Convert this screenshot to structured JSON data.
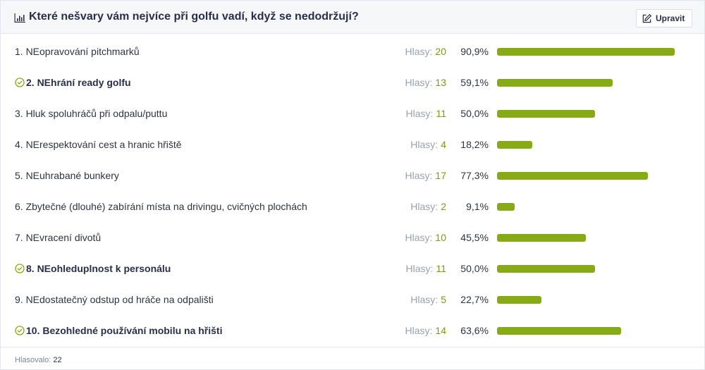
{
  "poll": {
    "title": "Které nešvary vám nejvíce při golfu vadí, když se nedodržují?",
    "edit_label": "Upravit",
    "votes_label": "Hlasy:",
    "total_label": "Hlasovalo:",
    "total_votes": "22",
    "accent_color": "#86ab14",
    "options": [
      {
        "label": "1. NEopravování pitchmarků",
        "votes": "20",
        "percent": "90,9%",
        "fraction": 0.909,
        "selected": false
      },
      {
        "label": "2. NEhrání ready golfu",
        "votes": "13",
        "percent": "59,1%",
        "fraction": 0.591,
        "selected": true
      },
      {
        "label": "3. Hluk spoluhráčů při odpalu/puttu",
        "votes": "11",
        "percent": "50,0%",
        "fraction": 0.5,
        "selected": false
      },
      {
        "label": "4. NErespektování cest a hranic hřiště",
        "votes": "4",
        "percent": "18,2%",
        "fraction": 0.182,
        "selected": false
      },
      {
        "label": "5. NEuhrabané bunkery",
        "votes": "17",
        "percent": "77,3%",
        "fraction": 0.773,
        "selected": false
      },
      {
        "label": "6. Zbytečné (dlouhé) zabírání místa na drivingu, cvičných plochách",
        "votes": "2",
        "percent": "9,1%",
        "fraction": 0.091,
        "selected": false
      },
      {
        "label": "7. NEvracení divotů",
        "votes": "10",
        "percent": "45,5%",
        "fraction": 0.455,
        "selected": false
      },
      {
        "label": "8. NEohleduplnost k personálu",
        "votes": "11",
        "percent": "50,0%",
        "fraction": 0.5,
        "selected": true
      },
      {
        "label": "9. NEdostatečný odstup od hráče na odpališti",
        "votes": "5",
        "percent": "22,7%",
        "fraction": 0.227,
        "selected": false
      },
      {
        "label": "10. Bezohledné používání mobilu na hřišti",
        "votes": "14",
        "percent": "63,6%",
        "fraction": 0.636,
        "selected": true
      }
    ]
  }
}
